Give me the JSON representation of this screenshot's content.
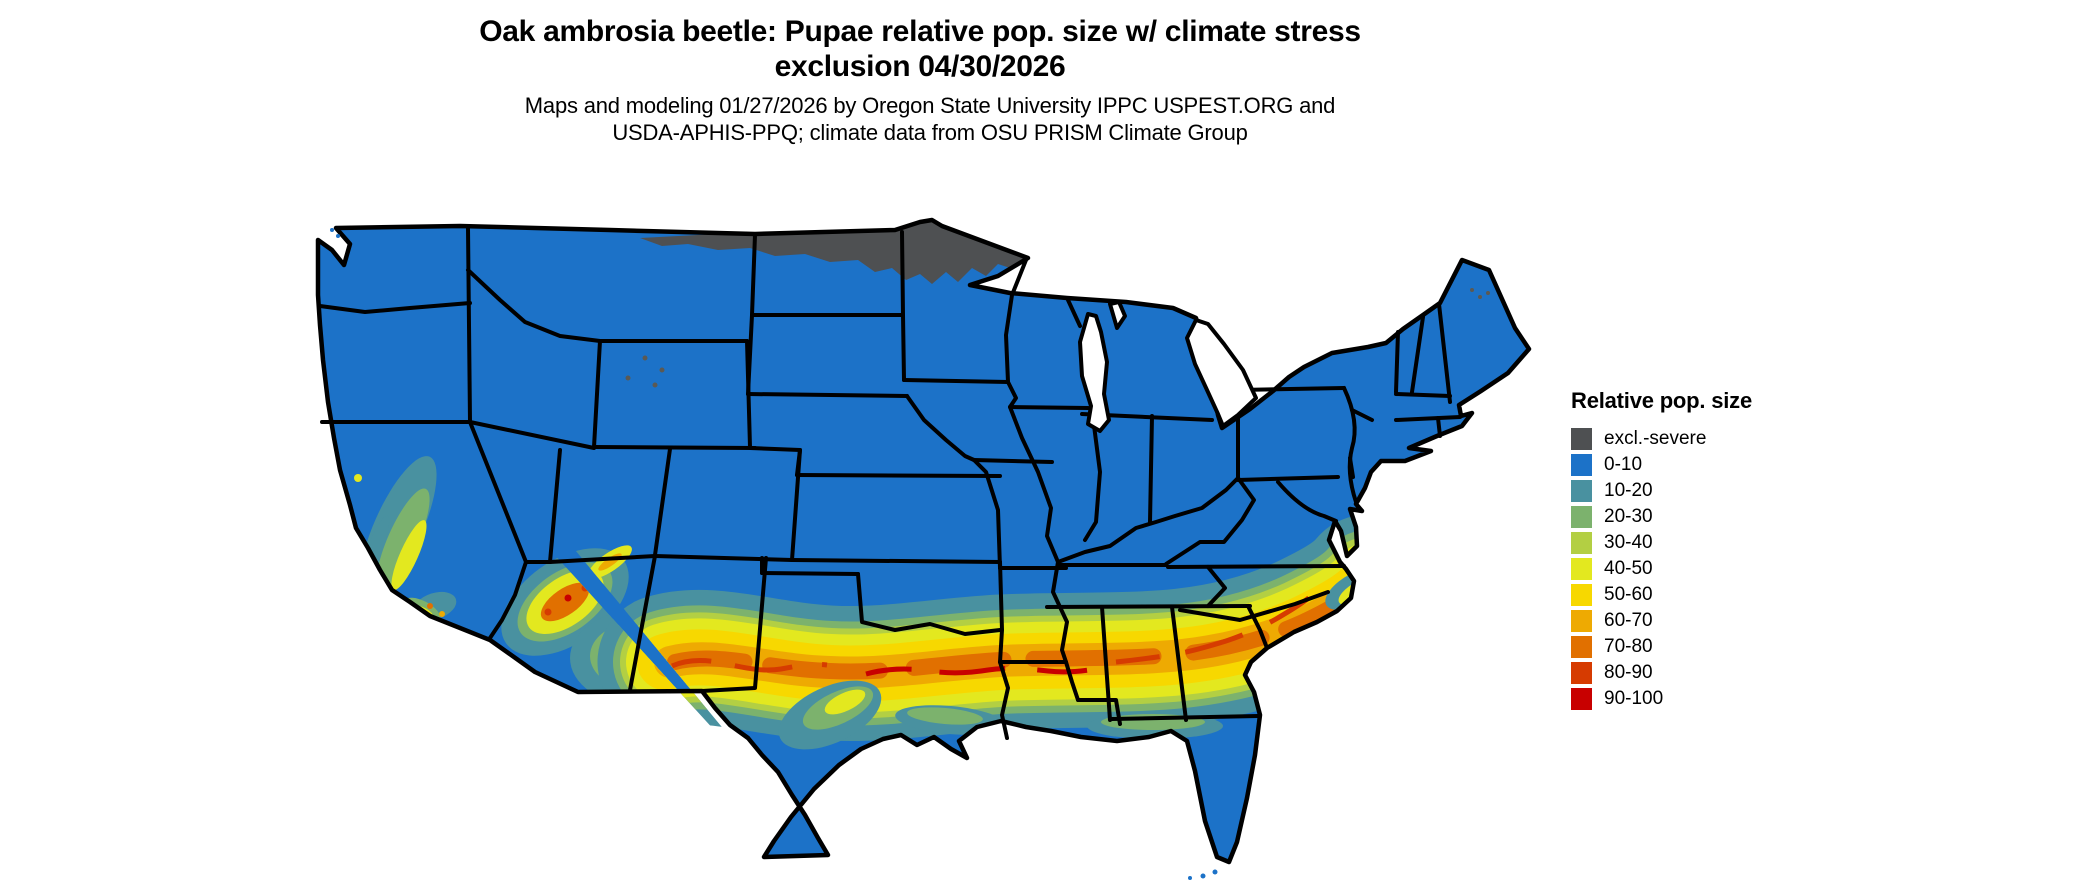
{
  "title": {
    "line1": "Oak ambrosia beetle: Pupae relative pop. size w/ climate stress",
    "line2": "exclusion 04/30/2026"
  },
  "subtitle": {
    "line1": "Maps and modeling 01/27/2026 by Oregon State University IPPC USPEST.ORG and",
    "line2": "USDA-APHIS-PPQ; climate data from OSU PRISM Climate Group"
  },
  "legend": {
    "title": "Relative pop. size",
    "items": [
      {
        "label": "excl.-severe",
        "color": "#4e5052"
      },
      {
        "label": "0-10",
        "color": "#1c72c8"
      },
      {
        "label": "10-20",
        "color": "#4991a0"
      },
      {
        "label": "20-30",
        "color": "#7cb26d"
      },
      {
        "label": "30-40",
        "color": "#b3cf43"
      },
      {
        "label": "40-50",
        "color": "#e3e81f"
      },
      {
        "label": "50-60",
        "color": "#f7d800"
      },
      {
        "label": "60-70",
        "color": "#eeaa02"
      },
      {
        "label": "70-80",
        "color": "#e17000"
      },
      {
        "label": "80-90",
        "color": "#d63b01"
      },
      {
        "label": "90-100",
        "color": "#c80000"
      }
    ]
  },
  "map": {
    "region": "Contiguous United States",
    "border_color": "#000000",
    "water_color": "#ffffff",
    "colors": {
      "excl": "#4e5052",
      "blue": "#1c72c8",
      "teal": "#4991a0",
      "green": "#7cb26d",
      "yellowgreen": "#b3cf43",
      "yellow": "#e3e81f",
      "gold": "#f7d800",
      "orange": "#eeaa02",
      "darkorange": "#e17000",
      "redorange": "#d63b01",
      "red": "#c80000",
      "speck": "#5b5953"
    }
  }
}
